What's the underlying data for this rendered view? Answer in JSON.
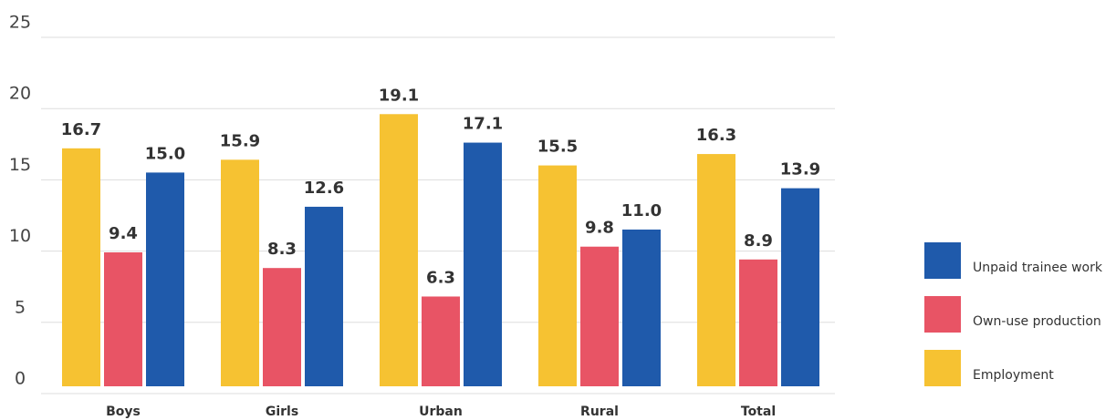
{
  "chart_data": {
    "type": "bar",
    "categories": [
      "Boys",
      "Girls",
      "Urban",
      "Rural",
      "Total"
    ],
    "series": [
      {
        "name": "Employment",
        "color": "#f6c232",
        "values": [
          16.7,
          15.9,
          19.1,
          15.5,
          16.3
        ],
        "value_labels": [
          "16.7",
          "15.9",
          "19.1",
          "15.5",
          "16.3"
        ]
      },
      {
        "name": "Own-use production",
        "color": "#e85465",
        "values": [
          9.4,
          8.3,
          6.3,
          9.8,
          8.9
        ],
        "value_labels": [
          "9.4",
          "8.3",
          "6.3",
          "9.8",
          "8.9"
        ]
      },
      {
        "name": "Unpaid trainee work",
        "color": "#1f5aab",
        "values": [
          15.0,
          12.6,
          17.1,
          11.0,
          13.9
        ],
        "value_labels": [
          "15.0",
          "12.6",
          "17.1",
          "11.0",
          "13.9"
        ]
      }
    ],
    "ylim": [
      0,
      25
    ],
    "yticks": [
      0,
      5,
      10,
      15,
      20,
      25
    ],
    "grid": true,
    "legend": "right"
  }
}
